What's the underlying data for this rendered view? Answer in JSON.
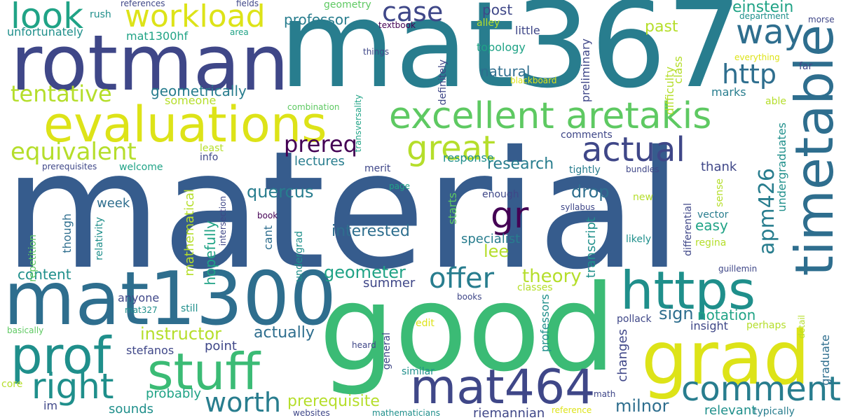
{
  "palette": {
    "dark_purple": "#440154",
    "indigo": "#3f4788",
    "blue": "#365c8d",
    "steel_blue": "#2e6e8e",
    "teal_blue": "#287d8e",
    "teal": "#1f8f8b",
    "sea_green": "#20a386",
    "green": "#3bbb75",
    "light_green": "#5ec962",
    "lime": "#84d44b",
    "yellow_green": "#b5de2b",
    "yellow": "#dde318",
    "yellow_bright": "#fde725"
  },
  "words": [
    {
      "text": "material"
    },
    {
      "text": "mat367"
    },
    {
      "text": "good"
    },
    {
      "text": "rotman"
    },
    {
      "text": "mat1300"
    },
    {
      "text": "evaluations"
    },
    {
      "text": "grad"
    },
    {
      "text": "timetable"
    },
    {
      "text": "https"
    },
    {
      "text": "stuff"
    },
    {
      "text": "prof"
    },
    {
      "text": "mat464"
    },
    {
      "text": "excellent aretakis"
    },
    {
      "text": "workload"
    },
    {
      "text": "look"
    },
    {
      "text": "way"
    },
    {
      "text": "right"
    },
    {
      "text": "comment"
    },
    {
      "text": "great"
    },
    {
      "text": "actual"
    },
    {
      "text": "case"
    },
    {
      "text": "http"
    },
    {
      "text": "gr"
    },
    {
      "text": "offer"
    },
    {
      "text": "tentative"
    },
    {
      "text": "equivalent"
    },
    {
      "text": "prereq"
    },
    {
      "text": "worth"
    },
    {
      "text": "apm426"
    },
    {
      "text": "theory"
    },
    {
      "text": "instructor"
    },
    {
      "text": "prerequisite"
    },
    {
      "text": "geometer"
    },
    {
      "text": "einstein"
    },
    {
      "text": "research"
    },
    {
      "text": "drop"
    },
    {
      "text": "interested"
    },
    {
      "text": "quercus"
    },
    {
      "text": "sign"
    },
    {
      "text": "lee"
    },
    {
      "text": "actually"
    },
    {
      "text": "milnor"
    },
    {
      "text": "past"
    },
    {
      "text": "professor"
    },
    {
      "text": "geometrically"
    },
    {
      "text": "natural"
    },
    {
      "text": "lectures"
    },
    {
      "text": "week"
    },
    {
      "text": "notation"
    },
    {
      "text": "post"
    },
    {
      "text": "easy"
    },
    {
      "text": "hopefully"
    },
    {
      "text": "mathematical"
    },
    {
      "text": "content"
    },
    {
      "text": "summer"
    },
    {
      "text": "point"
    },
    {
      "text": "relevant"
    },
    {
      "text": "sounds"
    },
    {
      "text": "probably"
    },
    {
      "text": "riemannian"
    },
    {
      "text": "thank"
    },
    {
      "text": "specialist"
    },
    {
      "text": "insight"
    },
    {
      "text": "anyone"
    },
    {
      "text": "unfortunately"
    },
    {
      "text": "mat1300hf"
    },
    {
      "text": "little"
    },
    {
      "text": "topology"
    },
    {
      "text": "marks"
    },
    {
      "text": "someone"
    },
    {
      "text": "response"
    },
    {
      "text": "comments"
    },
    {
      "text": "welcome"
    },
    {
      "text": "enough"
    },
    {
      "text": "stefanos"
    },
    {
      "text": "changes"
    },
    {
      "text": "transcript"
    },
    {
      "text": "though"
    },
    {
      "text": "cant"
    },
    {
      "text": "starts"
    },
    {
      "text": "preliminary"
    },
    {
      "text": "graduate"
    },
    {
      "text": "undergraduates"
    },
    {
      "text": "professors"
    },
    {
      "text": "class"
    },
    {
      "text": "difficulty"
    },
    {
      "text": "definitely"
    },
    {
      "text": "rush"
    },
    {
      "text": "references"
    },
    {
      "text": "fields"
    },
    {
      "text": "geometry"
    },
    {
      "text": "department"
    },
    {
      "text": "morse"
    },
    {
      "text": "textbook"
    },
    {
      "text": "area"
    },
    {
      "text": "alley"
    },
    {
      "text": "everything"
    },
    {
      "text": "things"
    },
    {
      "text": "far"
    },
    {
      "text": "blackboard"
    },
    {
      "text": "able"
    },
    {
      "text": "combination"
    },
    {
      "text": "transversality"
    },
    {
      "text": "info"
    },
    {
      "text": "least"
    },
    {
      "text": "prerequisites"
    },
    {
      "text": "merit"
    },
    {
      "text": "tightly"
    },
    {
      "text": "bundles"
    },
    {
      "text": "page"
    },
    {
      "text": "sense"
    },
    {
      "text": "vector"
    },
    {
      "text": "new"
    },
    {
      "text": "syllabus"
    },
    {
      "text": "differential"
    },
    {
      "text": "book"
    },
    {
      "text": "intersection"
    },
    {
      "text": "relativity"
    },
    {
      "text": "likely"
    },
    {
      "text": "regina"
    },
    {
      "text": "repetition"
    },
    {
      "text": "undergrad"
    },
    {
      "text": "guillemin"
    },
    {
      "text": "books"
    },
    {
      "text": "classes"
    },
    {
      "text": "mat327"
    },
    {
      "text": "still"
    },
    {
      "text": "pollack"
    },
    {
      "text": "perhaps"
    },
    {
      "text": "basically"
    },
    {
      "text": "edit"
    },
    {
      "text": "detail"
    },
    {
      "text": "heard"
    },
    {
      "text": "general"
    },
    {
      "text": "core"
    },
    {
      "text": "similar"
    },
    {
      "text": "im"
    },
    {
      "text": "math"
    },
    {
      "text": "websites"
    },
    {
      "text": "mathematicians"
    },
    {
      "text": "reference"
    },
    {
      "text": "typically"
    }
  ]
}
